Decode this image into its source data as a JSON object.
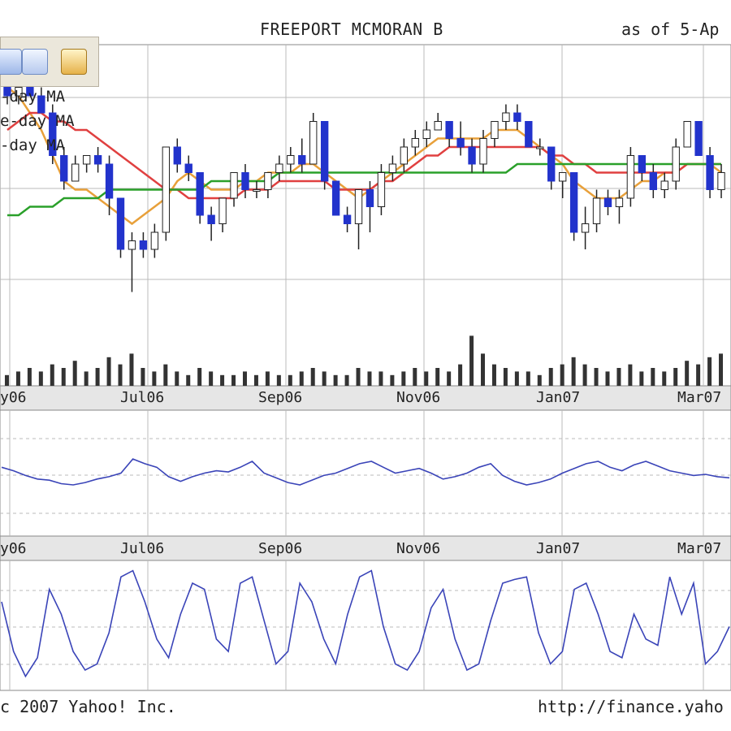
{
  "header": {
    "title": "FREEPORT MCMORAN B",
    "as_of": "as of  5-Ap"
  },
  "toolbar": {
    "icons": [
      "chart-icon",
      "email-icon",
      "print-icon"
    ]
  },
  "legend": {
    "items": [
      "-day MA",
      "e-day MA",
      "-day MA"
    ],
    "colors": [
      "#e8a03a",
      "#e04040",
      "#2aa02a"
    ]
  },
  "footer": {
    "left": "c 2007 Yahoo! Inc.",
    "right": "http://finance.yaho"
  },
  "x_ticks": [
    "y06",
    "Jul06",
    "Sep06",
    "Nov06",
    "Jan07",
    "Mar07"
  ],
  "x_ticks_panel3": [
    "y06",
    "Jul06",
    "Sep06",
    "Nov06",
    "Jan07",
    "Mar07"
  ],
  "colors": {
    "up": "#ffffff",
    "down": "#2233cc",
    "indicator": "#3a44b8",
    "grid": "#bbbbbb",
    "axis_band": "#e6e6e6"
  },
  "chart_data": [
    {
      "type": "candlestick",
      "title": "FREEPORT MCMORAN B",
      "x_tick_labels": [
        "y06",
        "Jul06",
        "Sep06",
        "Nov06",
        "Jan07",
        "Mar07"
      ],
      "candles_ohlc": [
        [
          45,
          47,
          43,
          44
        ],
        [
          44,
          46,
          43,
          45
        ],
        [
          45,
          46,
          44,
          44
        ],
        [
          44,
          45,
          42,
          42
        ],
        [
          42,
          43,
          36,
          37
        ],
        [
          37,
          38,
          33,
          34
        ],
        [
          34,
          37,
          34,
          36
        ],
        [
          36,
          37,
          35,
          37
        ],
        [
          37,
          38,
          35,
          36
        ],
        [
          36,
          37,
          30,
          32
        ],
        [
          32,
          32,
          25,
          26
        ],
        [
          26,
          28,
          21,
          27
        ],
        [
          27,
          28,
          25,
          26
        ],
        [
          26,
          29,
          25,
          28
        ],
        [
          28,
          38,
          27,
          38
        ],
        [
          38,
          39,
          35,
          36
        ],
        [
          36,
          37,
          34,
          35
        ],
        [
          35,
          35,
          29,
          30
        ],
        [
          30,
          31,
          27,
          29
        ],
        [
          29,
          32,
          28,
          32
        ],
        [
          32,
          35,
          31,
          35
        ],
        [
          35,
          36,
          32,
          33
        ],
        [
          33,
          34,
          32,
          33
        ],
        [
          33,
          35,
          32,
          35
        ],
        [
          35,
          37,
          34,
          36
        ],
        [
          36,
          38,
          35,
          37
        ],
        [
          37,
          39,
          35,
          36
        ],
        [
          36,
          42,
          36,
          41
        ],
        [
          41,
          41,
          33,
          34
        ],
        [
          34,
          34,
          30,
          30
        ],
        [
          30,
          31,
          28,
          29
        ],
        [
          29,
          33,
          26,
          33
        ],
        [
          33,
          34,
          28,
          31
        ],
        [
          31,
          36,
          30,
          35
        ],
        [
          35,
          37,
          34,
          36
        ],
        [
          36,
          39,
          35,
          38
        ],
        [
          38,
          40,
          37,
          39
        ],
        [
          39,
          41,
          38,
          40
        ],
        [
          40,
          42,
          40,
          41
        ],
        [
          41,
          41,
          38,
          39
        ],
        [
          39,
          41,
          37,
          38
        ],
        [
          38,
          39,
          35,
          36
        ],
        [
          36,
          40,
          35,
          39
        ],
        [
          39,
          41,
          38,
          41
        ],
        [
          41,
          43,
          40,
          42
        ],
        [
          42,
          43,
          40,
          41
        ],
        [
          41,
          41,
          38,
          38
        ],
        [
          38,
          39,
          37,
          38
        ],
        [
          38,
          38,
          33,
          34
        ],
        [
          34,
          35,
          32,
          35
        ],
        [
          35,
          35,
          27,
          28
        ],
        [
          28,
          31,
          26,
          29
        ],
        [
          29,
          33,
          28,
          32
        ],
        [
          32,
          33,
          30,
          31
        ],
        [
          31,
          33,
          29,
          32
        ],
        [
          32,
          38,
          31,
          37
        ],
        [
          37,
          37,
          34,
          35
        ],
        [
          35,
          36,
          32,
          33
        ],
        [
          33,
          35,
          32,
          34
        ],
        [
          34,
          39,
          33,
          38
        ],
        [
          38,
          41,
          38,
          41
        ],
        [
          41,
          41,
          37,
          37
        ],
        [
          37,
          38,
          32,
          33
        ],
        [
          33,
          36,
          32,
          35
        ]
      ],
      "series": [
        {
          "name": "-day MA",
          "color": "#e8a03a",
          "values": [
            45,
            44,
            42,
            40,
            37,
            34,
            33,
            33,
            32,
            31,
            30,
            29,
            30,
            31,
            32,
            34,
            35,
            34,
            33,
            33,
            33,
            34,
            34,
            35,
            35,
            35,
            36,
            36,
            35,
            34,
            33,
            32,
            33,
            34,
            35,
            36,
            37,
            38,
            39,
            39,
            39,
            39,
            39,
            40,
            40,
            40,
            39,
            38,
            37,
            36,
            34,
            33,
            32,
            32,
            32,
            33,
            34,
            34,
            35,
            35,
            36,
            36,
            36,
            35
          ]
        },
        {
          "name": "e-day MA",
          "color": "#e04040",
          "values": [
            40,
            41,
            42,
            42,
            41,
            41,
            40,
            40,
            39,
            38,
            37,
            36,
            35,
            34,
            33,
            33,
            32,
            32,
            32,
            32,
            32,
            33,
            33,
            33,
            34,
            34,
            34,
            34,
            34,
            33,
            33,
            33,
            33,
            34,
            34,
            35,
            36,
            37,
            37,
            38,
            38,
            38,
            38,
            38,
            38,
            38,
            38,
            38,
            37,
            37,
            36,
            36,
            35,
            35,
            35,
            35,
            35,
            35,
            35,
            35,
            36,
            36,
            36,
            36
          ]
        },
        {
          "name": "-day MA",
          "color": "#2aa02a",
          "values": [
            30,
            30,
            31,
            31,
            31,
            32,
            32,
            32,
            32,
            33,
            33,
            33,
            33,
            33,
            33,
            33,
            33,
            33,
            34,
            34,
            34,
            34,
            34,
            34,
            35,
            35,
            35,
            35,
            35,
            35,
            35,
            35,
            35,
            35,
            35,
            35,
            35,
            35,
            35,
            35,
            35,
            35,
            35,
            35,
            35,
            36,
            36,
            36,
            36,
            36,
            36,
            36,
            36,
            36,
            36,
            36,
            36,
            36,
            36,
            36,
            36,
            36,
            36,
            36
          ]
        }
      ],
      "volume": [
        3,
        4,
        5,
        4,
        6,
        5,
        7,
        4,
        5,
        8,
        6,
        9,
        5,
        4,
        6,
        4,
        3,
        5,
        4,
        3,
        3,
        4,
        3,
        4,
        3,
        3,
        4,
        5,
        4,
        3,
        3,
        5,
        4,
        4,
        3,
        4,
        5,
        4,
        5,
        4,
        6,
        14,
        9,
        6,
        5,
        4,
        4,
        3,
        5,
        6,
        8,
        6,
        5,
        4,
        5,
        6,
        4,
        5,
        4,
        5,
        7,
        6,
        8,
        9
      ]
    },
    {
      "type": "line",
      "series": [
        {
          "values": [
            55,
            52,
            48,
            45,
            44,
            41,
            40,
            42,
            45,
            47,
            50,
            62,
            58,
            55,
            47,
            43,
            47,
            50,
            52,
            51,
            55,
            60,
            50,
            46,
            42,
            40,
            44,
            48,
            50,
            54,
            58,
            60,
            55,
            50,
            52,
            54,
            50,
            45,
            47,
            50,
            55,
            58,
            48,
            43,
            40,
            42,
            45,
            50,
            54,
            58,
            60,
            55,
            52,
            57,
            60,
            56,
            52,
            50,
            48,
            49,
            47,
            46
          ]
        }
      ]
    },
    {
      "type": "line",
      "series": [
        {
          "values": [
            70,
            30,
            10,
            25,
            80,
            60,
            30,
            15,
            20,
            45,
            90,
            95,
            70,
            40,
            25,
            60,
            85,
            80,
            40,
            30,
            85,
            90,
            55,
            20,
            30,
            85,
            70,
            40,
            20,
            60,
            90,
            95,
            50,
            20,
            15,
            30,
            65,
            80,
            40,
            15,
            20,
            55,
            85,
            88,
            90,
            45,
            20,
            30,
            80,
            85,
            60,
            30,
            25,
            60,
            40,
            35,
            90,
            60,
            85,
            20,
            30,
            50
          ]
        }
      ]
    }
  ]
}
